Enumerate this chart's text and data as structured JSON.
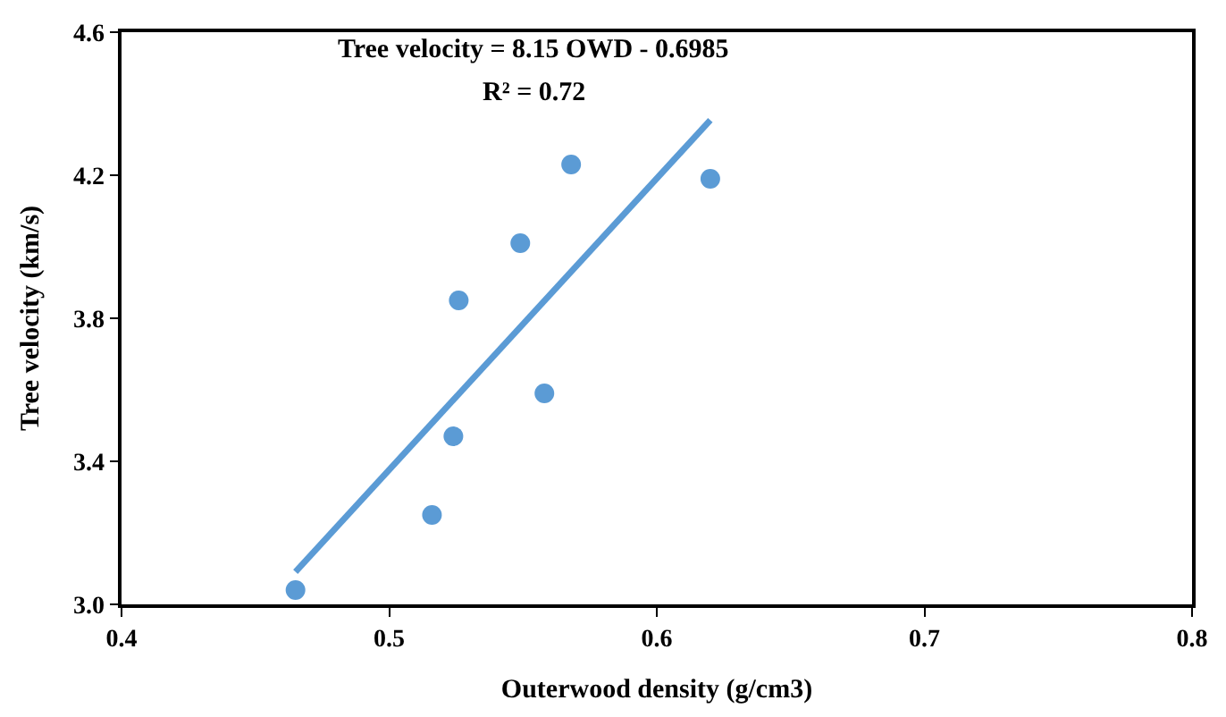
{
  "chart_data": {
    "type": "scatter",
    "xlabel": "Outerwood density (g/cm3)",
    "ylabel": "Tree velocity (km/s)",
    "annotations": [
      "Tree velocity = 8.15 OWD - 0.6985",
      "R² = 0.72"
    ],
    "series": [
      {
        "color": "#5b9bd5",
        "x": [
          0.465,
          0.516,
          0.524,
          0.526,
          0.549,
          0.558,
          0.568,
          0.62
        ],
        "values": [
          3.04,
          3.25,
          3.47,
          3.85,
          4.01,
          3.59,
          4.23,
          4.19
        ]
      },
      {
        "type": "line",
        "color": "#5b9bd5",
        "marker": "none",
        "x": [
          0.465,
          0.62
        ],
        "values": [
          3.091,
          4.354
        ]
      }
    ],
    "xlim": [
      0.4,
      0.8
    ],
    "xticks": [
      0.4,
      0.5,
      0.6,
      0.7,
      0.8
    ],
    "ylim": [
      3.0,
      4.6
    ],
    "yticks": [
      {
        "value": 3.0,
        "label": "3.0"
      },
      {
        "value": 3.4,
        "label": "3.4"
      },
      3.8,
      4.2,
      4.6
    ],
    "marker": "circle"
  }
}
